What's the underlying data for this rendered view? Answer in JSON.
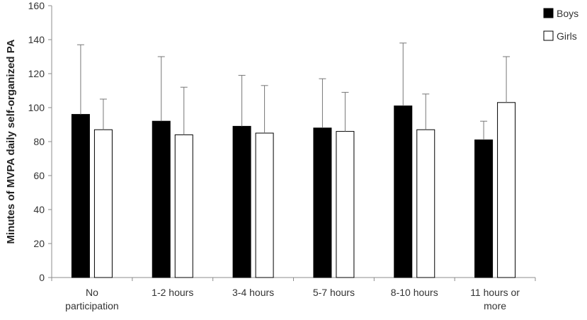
{
  "chart_data": {
    "type": "bar",
    "ylabel": "Minutes of MVPA daily self-organized PA",
    "xlabel": "",
    "ylim": [
      0,
      160
    ],
    "yticks": [
      0,
      20,
      40,
      60,
      80,
      100,
      120,
      140,
      160
    ],
    "grid": false,
    "legend_placement": "top-right",
    "categories": [
      [
        "No",
        "participation"
      ],
      [
        "1-2 hours"
      ],
      [
        "3-4 hours"
      ],
      [
        "5-7 hours"
      ],
      [
        "8-10 hours"
      ],
      [
        "11 hours or",
        "more"
      ]
    ],
    "series": [
      {
        "name": "Boys",
        "fill": "#000000",
        "values": [
          96,
          92,
          89,
          88,
          101,
          81
        ],
        "error_upper": [
          137,
          130,
          119,
          117,
          138,
          92
        ]
      },
      {
        "name": "Girls",
        "fill": "#ffffff",
        "values": [
          87,
          84,
          85,
          86,
          87,
          103
        ],
        "error_upper": [
          105,
          112,
          113,
          109,
          108,
          130
        ]
      }
    ]
  }
}
